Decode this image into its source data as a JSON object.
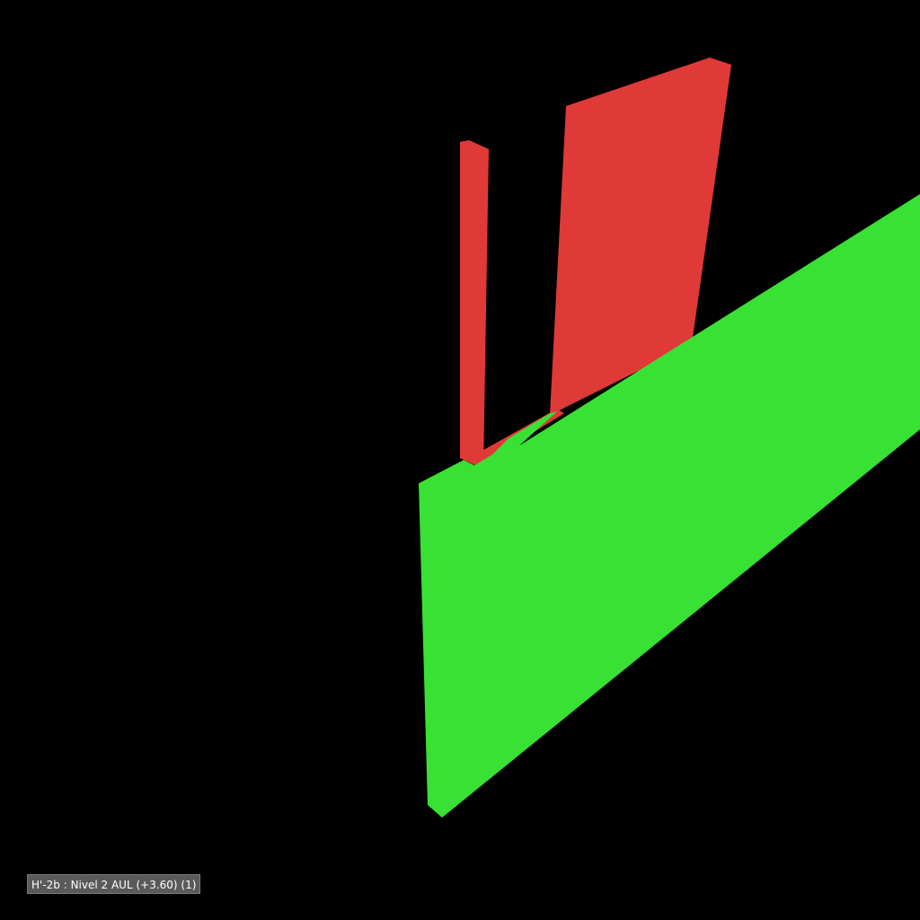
{
  "viewport": {
    "background_color": "#000000",
    "colors": {
      "red_element": "#df3a38",
      "green_element": "#38e133"
    }
  },
  "level_label": {
    "text": "H'-2b : Nivel 2 AUL (+3.60) (1)"
  }
}
